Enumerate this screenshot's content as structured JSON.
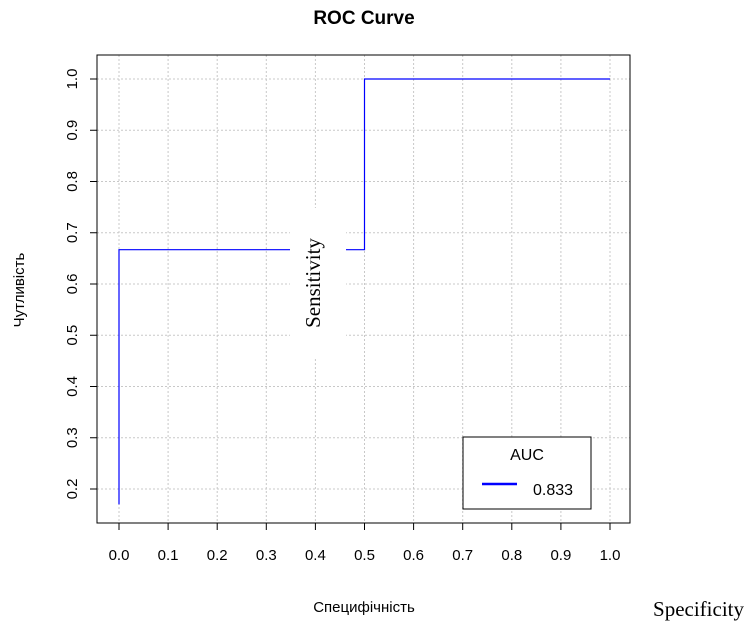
{
  "chart_data": {
    "type": "line",
    "title": "ROC Curve",
    "xlabel": "Специфічність",
    "ylabel": "Чутливість",
    "x_ticks": [
      "0.0",
      "0.1",
      "0.2",
      "0.3",
      "0.4",
      "0.5",
      "0.6",
      "0.7",
      "0.8",
      "0.9",
      "1.0"
    ],
    "y_ticks": [
      "0.2",
      "0.3",
      "0.4",
      "0.5",
      "0.6",
      "0.7",
      "0.8",
      "0.9",
      "1.0"
    ],
    "xlim": [
      0,
      1
    ],
    "ylim": [
      0.17,
      1
    ],
    "grid": true,
    "series": [
      {
        "name": "0.833",
        "color": "#0000ff",
        "x": [
          0.0,
          0.0,
          0.5,
          0.5,
          1.0
        ],
        "y": [
          0.17,
          0.667,
          0.667,
          1.0,
          1.0
        ]
      }
    ],
    "legend": {
      "title": "AUC",
      "position": "bottom-right"
    },
    "overlay_labels": [
      "Sensitivity",
      "Specificity"
    ]
  }
}
